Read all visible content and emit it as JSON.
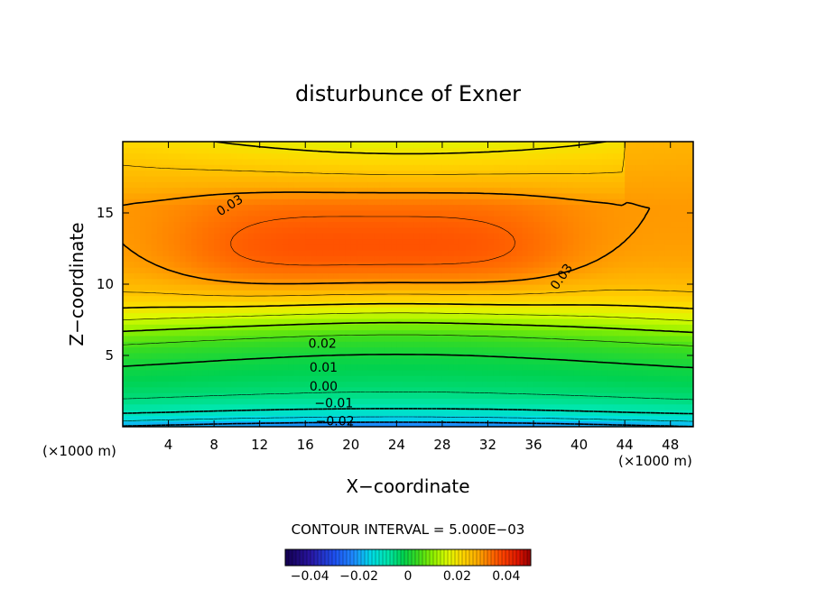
{
  "chart_data": {
    "type": "heatmap",
    "title": "disturbunce of Exner",
    "xlabel": "X−coordinate",
    "ylabel": "Z−coordinate",
    "x_unit_left": "(×1000 m)",
    "x_unit_right": "(×1000 m)",
    "xlim": [
      0,
      50
    ],
    "ylim": [
      0,
      20
    ],
    "x_ticks": [
      4,
      8,
      12,
      16,
      20,
      24,
      28,
      32,
      36,
      40,
      44,
      48
    ],
    "y_ticks": [
      5,
      10,
      15
    ],
    "contour_interval_label": "CONTOUR INTERVAL = 5.000E−03",
    "contour_labels": [
      {
        "text": "0.03",
        "x": 9.4,
        "z": 15.5,
        "angle": -32
      },
      {
        "text": "0.03",
        "x": 38.5,
        "z": 10.5,
        "angle": -55
      },
      {
        "text": "0.02",
        "x": 17.5,
        "z": 5.8,
        "angle": 0
      },
      {
        "text": "0.01",
        "x": 17.6,
        "z": 4.1,
        "angle": 0
      },
      {
        "text": "0.00",
        "x": 17.6,
        "z": 2.8,
        "angle": 0
      },
      {
        "text": "−0.01",
        "x": 18.5,
        "z": 1.6,
        "angle": 0
      },
      {
        "text": "−0.02",
        "x": 18.6,
        "z": 0.35,
        "angle": 0
      }
    ],
    "colorbar": {
      "min": -0.05,
      "max": 0.05,
      "tick_values": [
        -0.04,
        -0.02,
        0,
        0.02,
        0.04
      ],
      "tick_labels": [
        "−0.04",
        "−0.02",
        "0",
        "0.02",
        "0.04"
      ]
    },
    "field": {
      "description_values_at_sample_points": [
        {
          "x": 22,
          "z": 12,
          "value": 0.038
        },
        {
          "x": 25,
          "z": 2,
          "value": -0.002
        },
        {
          "x": 25,
          "z": 0,
          "value": -0.022
        },
        {
          "x": 0,
          "z": 19,
          "value": 0.025
        },
        {
          "x": 50,
          "z": 12,
          "value": 0.03
        }
      ]
    }
  }
}
